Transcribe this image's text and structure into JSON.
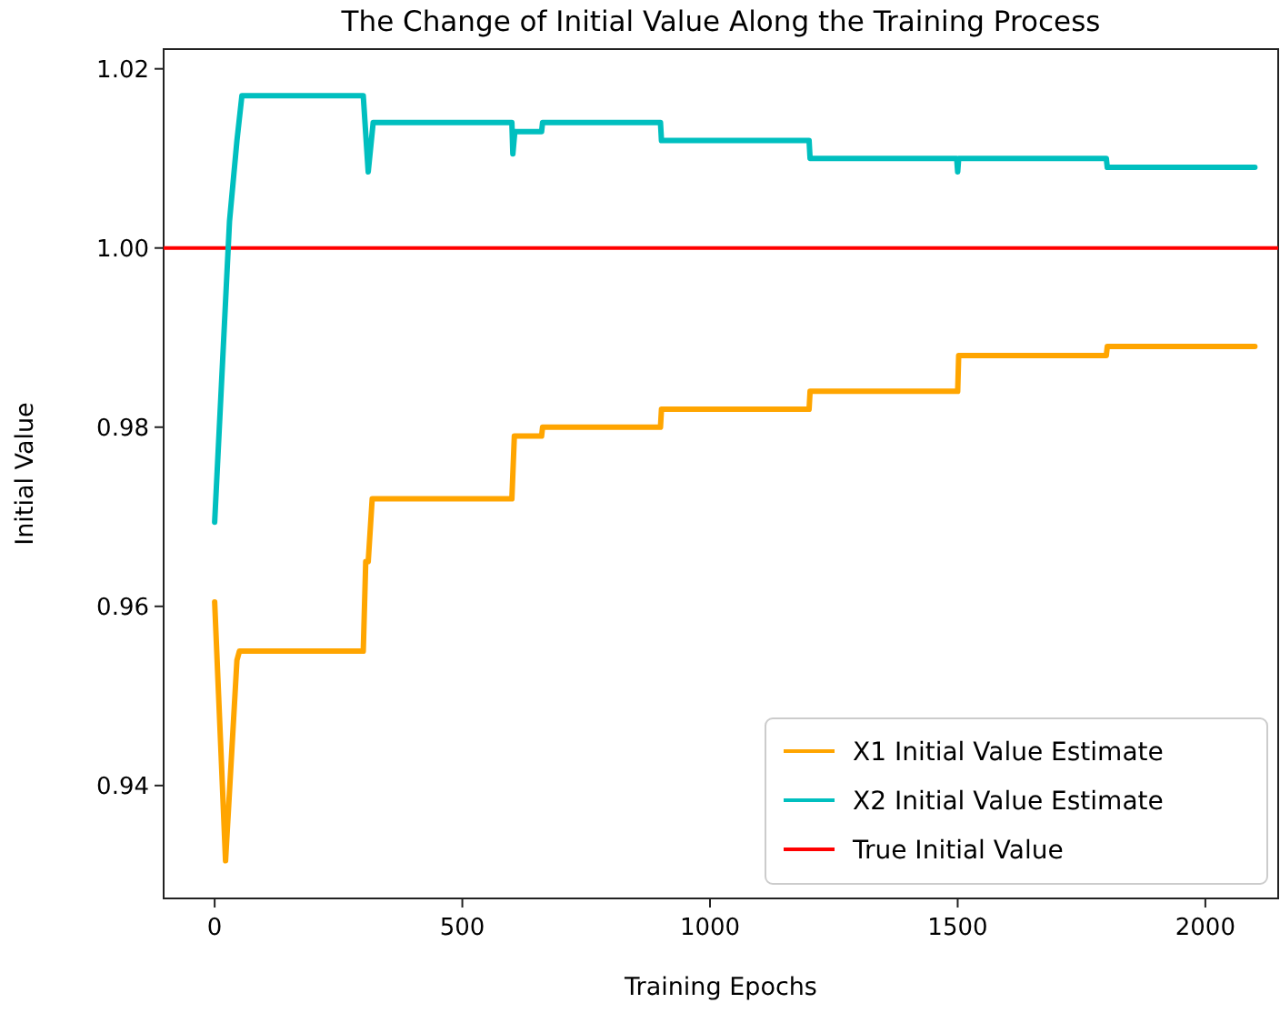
{
  "chart_data": {
    "type": "line",
    "title": "The Change of Initial Value Along the Training Process",
    "xlabel": "Training Epochs",
    "ylabel": "Initial Value",
    "series": [
      {
        "name": "X1 Initial Value Estimate",
        "color": "#ffa500",
        "x": [
          0,
          22,
          45,
          50,
          300,
          305,
          310,
          318,
          330,
          600,
          605,
          660,
          662,
          900,
          902,
          1200,
          1202,
          1500,
          1502,
          1800,
          1802,
          2100
        ],
        "values": [
          0.9605,
          0.9316,
          0.954,
          0.955,
          0.955,
          0.965,
          0.965,
          0.972,
          0.972,
          0.972,
          0.979,
          0.979,
          0.98,
          0.98,
          0.982,
          0.982,
          0.984,
          0.984,
          0.988,
          0.988,
          0.989,
          0.989
        ]
      },
      {
        "name": "X2 Initial Value Estimate",
        "color": "#00bfbf",
        "x": [
          0,
          30,
          45,
          55,
          300,
          310,
          320,
          330,
          600,
          602,
          606,
          660,
          662,
          900,
          902,
          1200,
          1202,
          1498,
          1500,
          1502,
          1800,
          1802,
          2100
        ],
        "values": [
          0.9694,
          1.003,
          1.012,
          1.017,
          1.017,
          1.0085,
          1.014,
          1.014,
          1.014,
          1.0105,
          1.013,
          1.013,
          1.014,
          1.014,
          1.012,
          1.012,
          1.01,
          1.01,
          1.0085,
          1.01,
          1.01,
          1.009,
          1.009
        ]
      }
    ],
    "ref_lines": [
      {
        "axis": "y",
        "value": 1.0,
        "label": "True Initial Value",
        "color": "#ff0000"
      }
    ],
    "xlim": [
      -103,
      2147
    ],
    "ylim": [
      0.9274,
      1.0222
    ],
    "xticks": [
      0,
      500,
      1000,
      1500,
      2000
    ],
    "yticks": [
      0.94,
      0.96,
      0.98,
      {
        "value": 1.0,
        "label": "1.00"
      },
      1.02
    ],
    "legend": "bottom right",
    "grid": false
  }
}
